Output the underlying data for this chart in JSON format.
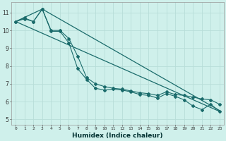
{
  "xlabel": "Humidex (Indice chaleur)",
  "background_color": "#cff0eb",
  "grid_color": "#b8ddd8",
  "line_color": "#1a6b6b",
  "xlim": [
    -0.5,
    23.5
  ],
  "ylim": [
    4.7,
    11.6
  ],
  "xticks": [
    0,
    1,
    2,
    3,
    4,
    5,
    6,
    7,
    8,
    9,
    10,
    11,
    12,
    13,
    14,
    15,
    16,
    17,
    18,
    19,
    20,
    21,
    22,
    23
  ],
  "yticks": [
    5,
    6,
    7,
    8,
    9,
    10,
    11
  ],
  "upper_envelope": {
    "x": [
      0,
      3,
      23
    ],
    "y": [
      10.5,
      11.2,
      5.5
    ]
  },
  "lower_envelope": {
    "x": [
      0,
      23
    ],
    "y": [
      10.5,
      5.45
    ]
  },
  "series1": {
    "x": [
      0,
      1,
      2,
      3,
      4,
      5,
      6,
      7,
      8,
      9,
      10,
      11,
      12,
      13,
      14,
      15,
      16,
      17,
      18,
      19,
      20,
      21,
      22,
      23
    ],
    "y": [
      10.5,
      10.7,
      10.5,
      11.2,
      9.95,
      9.95,
      9.3,
      7.85,
      7.25,
      6.75,
      6.65,
      6.7,
      6.65,
      6.55,
      6.4,
      6.35,
      6.2,
      6.45,
      6.3,
      6.1,
      5.75,
      5.55,
      5.85,
      5.45
    ]
  },
  "series2": {
    "x": [
      0,
      1,
      2,
      3,
      4,
      5,
      6,
      7,
      8,
      9,
      10,
      11,
      12,
      13,
      14,
      15,
      16,
      17,
      18,
      19,
      20,
      21,
      22,
      23
    ],
    "y": [
      10.5,
      10.65,
      10.5,
      11.2,
      10.0,
      10.0,
      9.55,
      8.55,
      7.35,
      7.0,
      6.85,
      6.75,
      6.7,
      6.6,
      6.5,
      6.45,
      6.35,
      6.55,
      6.4,
      6.35,
      6.25,
      6.15,
      6.1,
      5.85
    ]
  }
}
